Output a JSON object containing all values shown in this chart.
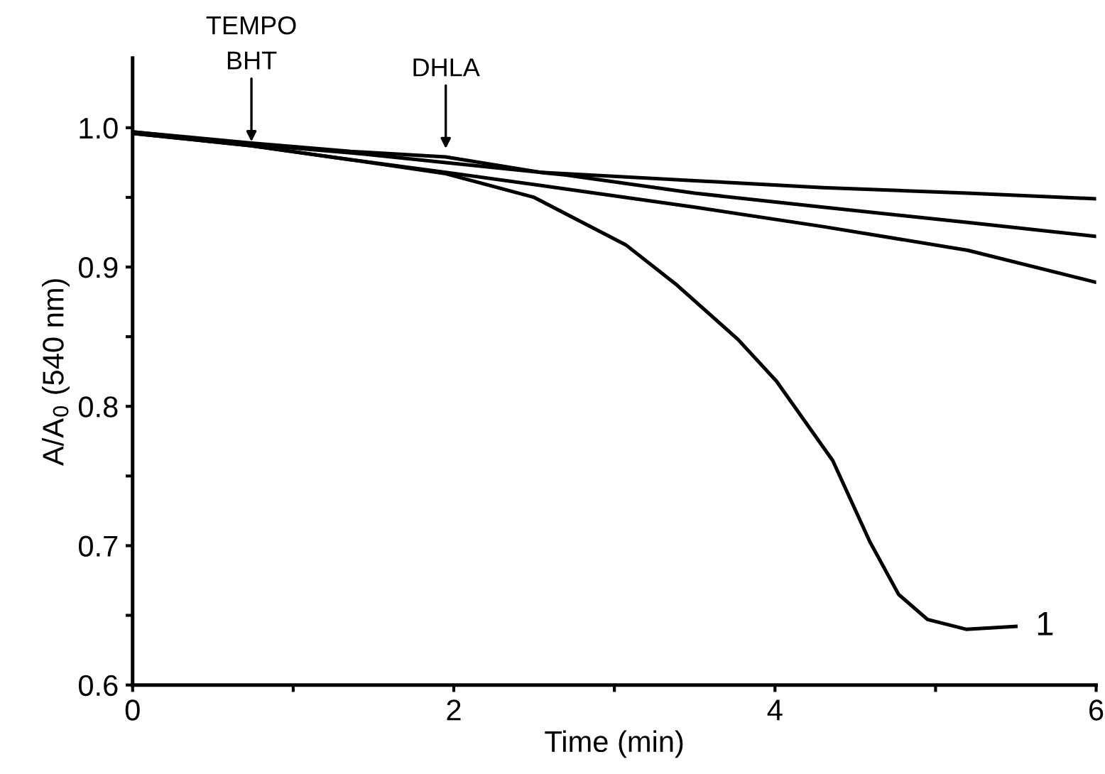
{
  "chart_data": {
    "type": "line",
    "xlabel": "Time (min)",
    "ylabel": "A/A$_{0}$ (540 nm)",
    "xlim": [
      0,
      6
    ],
    "ylim": [
      0.6,
      1.05
    ],
    "xticks": [
      0,
      {
        "value": 1,
        "label": null
      },
      2,
      {
        "value": 3,
        "label": null
      },
      4,
      {
        "value": 5,
        "label": null
      },
      6
    ],
    "yticks": [
      {
        "value": 0.6,
        "label": "0.6"
      },
      {
        "value": 0.65,
        "label": null
      },
      {
        "value": 0.7,
        "label": "0.7"
      },
      {
        "value": 0.75,
        "label": null
      },
      {
        "value": 0.8,
        "label": "0.8"
      },
      {
        "value": 0.85,
        "label": null
      },
      {
        "value": 0.9,
        "label": "0.9"
      },
      {
        "value": 0.95,
        "label": null
      },
      {
        "value": 1.0,
        "label": "1.0"
      }
    ],
    "grid": false,
    "legend": false,
    "marker": "none",
    "line_style": "solid",
    "series": [
      {
        "color": "#000000",
        "x": [
          0,
          0.74,
          1.36,
          1.95,
          2.54,
          3.5,
          4.3,
          5.2,
          6
        ],
        "values": [
          0.997,
          0.989,
          0.983,
          0.979,
          0.968,
          0.962,
          0.957,
          0.953,
          0.949
        ]
      },
      {
        "color": "#000000",
        "x": [
          0,
          0.74,
          1.36,
          1.95,
          2.7,
          3.5,
          4.3,
          5.2,
          6
        ],
        "values": [
          0.997,
          0.988,
          0.982,
          0.975,
          0.966,
          0.953,
          0.943,
          0.932,
          0.922
        ]
      },
      {
        "color": "#000000",
        "x": [
          0,
          0.74,
          1.36,
          1.95,
          2.7,
          3.5,
          4.3,
          5.2,
          6
        ],
        "values": [
          0.996,
          0.987,
          0.977,
          0.968,
          0.956,
          0.943,
          0.929,
          0.912,
          0.889
        ]
      },
      {
        "color": "#000000",
        "x": [
          0,
          0.74,
          1.36,
          1.95,
          2.5,
          3.07,
          3.39,
          3.77,
          4.01,
          4.36,
          4.59,
          4.77,
          4.95,
          5.19,
          5.5
        ],
        "values": [
          0.996,
          0.987,
          0.977,
          0.967,
          0.95,
          0.916,
          0.887,
          0.848,
          0.818,
          0.761,
          0.703,
          0.665,
          0.647,
          0.64,
          0.642
        ]
      }
    ],
    "annotations": [
      {
        "text": "TEMPO\nBHT",
        "x": 0.74,
        "y": 0.99
      },
      {
        "text": "DHLA",
        "x": 1.95,
        "y": 0.985
      },
      {
        "text": "1",
        "x": 5.5,
        "y": 0.642
      }
    ]
  }
}
